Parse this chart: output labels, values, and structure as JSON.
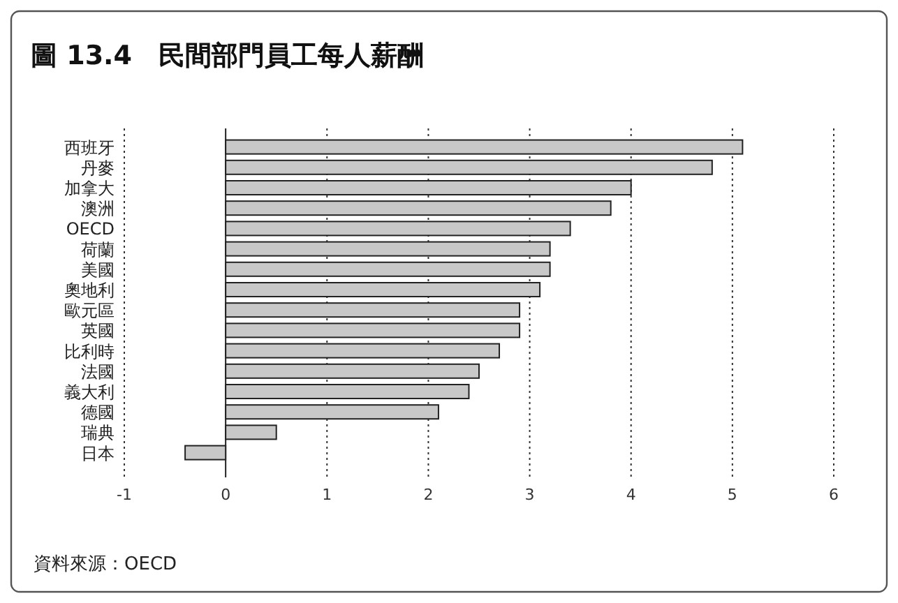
{
  "chart_data": {
    "type": "bar",
    "orientation": "horizontal",
    "title": "圖 13.4　民間部門員工每人薪酬",
    "categories": [
      "西班牙",
      "丹麥",
      "加拿大",
      "澳洲",
      "OECD",
      "荷蘭",
      "美國",
      "奧地利",
      "歐元區",
      "英國",
      "比利時",
      "法國",
      "義大利",
      "德國",
      "瑞典",
      "日本"
    ],
    "values": [
      5.1,
      4.8,
      4.0,
      3.8,
      3.4,
      3.2,
      3.2,
      3.1,
      2.9,
      2.9,
      2.7,
      2.5,
      2.4,
      2.1,
      0.5,
      -0.4
    ],
    "color": "#c8c8c8",
    "xlim": [
      -1,
      6
    ],
    "xticks": [
      -1,
      0,
      1,
      2,
      3,
      4,
      5,
      6
    ],
    "grid": "x",
    "annotations": [
      "資料來源：OECD"
    ]
  }
}
